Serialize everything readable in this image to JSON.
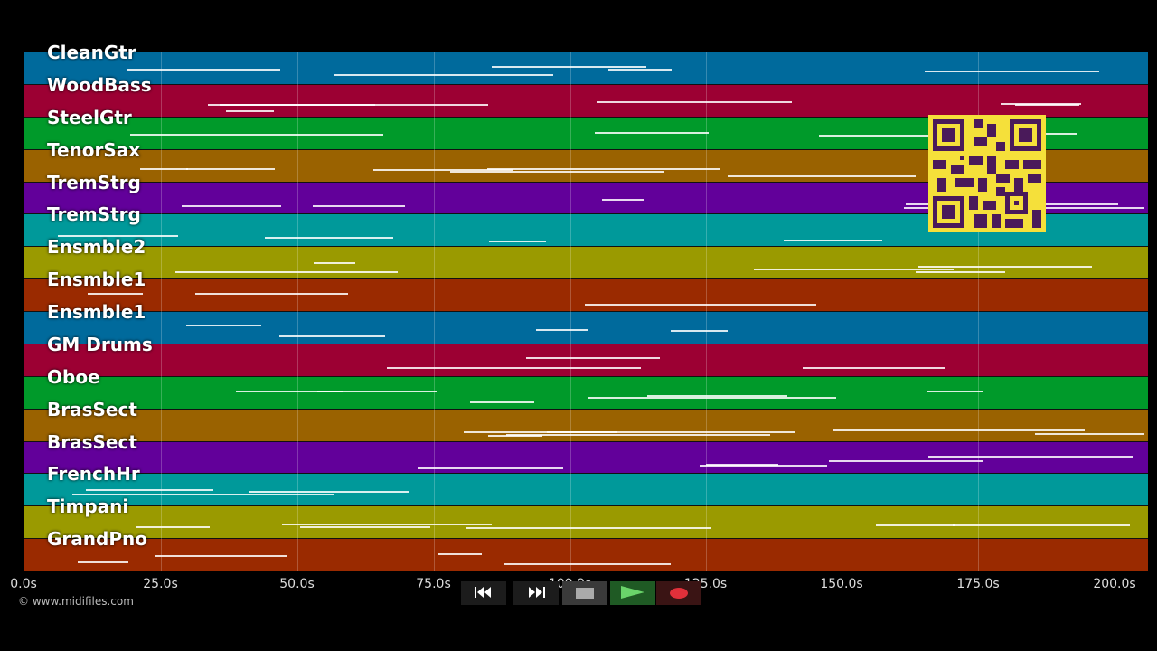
{
  "tracks": [
    {
      "name": "CleanGtr",
      "color": "#006a9c"
    },
    {
      "name": "WoodBass",
      "color": "#9c0033"
    },
    {
      "name": "SteelGtr",
      "color": "#009a2a"
    },
    {
      "name": "TenorSax",
      "color": "#9a6200"
    },
    {
      "name": "TremStrg",
      "color": "#62009a"
    },
    {
      "name": "TremStrg",
      "color": "#00999a"
    },
    {
      "name": "Ensmble2",
      "color": "#9a9a00"
    },
    {
      "name": "Ensmble1",
      "color": "#9a2a00"
    },
    {
      "name": "Ensmble1",
      "color": "#006a9c"
    },
    {
      "name": "GM Drums",
      "color": "#9c0033"
    },
    {
      "name": "Oboe",
      "color": "#009a2a"
    },
    {
      "name": "BrasSect",
      "color": "#9a6200"
    },
    {
      "name": "BrasSect",
      "color": "#62009a"
    },
    {
      "name": "FrenchHr",
      "color": "#00999a"
    },
    {
      "name": "Timpani",
      "color": "#9a9a00"
    },
    {
      "name": "GrandPno",
      "color": "#9a2a00"
    }
  ],
  "time_axis": {
    "ticks": [
      "0.0s",
      "25.0s",
      "50.0s",
      "75.0s",
      "100.0s",
      "125.0s",
      "150.0s",
      "175.0s",
      "200.0s"
    ]
  },
  "copyright": "© www.midifiles.com",
  "controls": [
    {
      "name": "rewind-button",
      "icon": "rewind-icon"
    },
    {
      "name": "fast-forward-button",
      "icon": "fast-forward-icon"
    },
    {
      "name": "stop-button",
      "icon": "stop-icon"
    },
    {
      "name": "play-button",
      "icon": "play-icon"
    },
    {
      "name": "record-button",
      "icon": "record-icon"
    }
  ],
  "overlay": {
    "icon": "qr-code-icon",
    "color": "#f5e03a"
  }
}
